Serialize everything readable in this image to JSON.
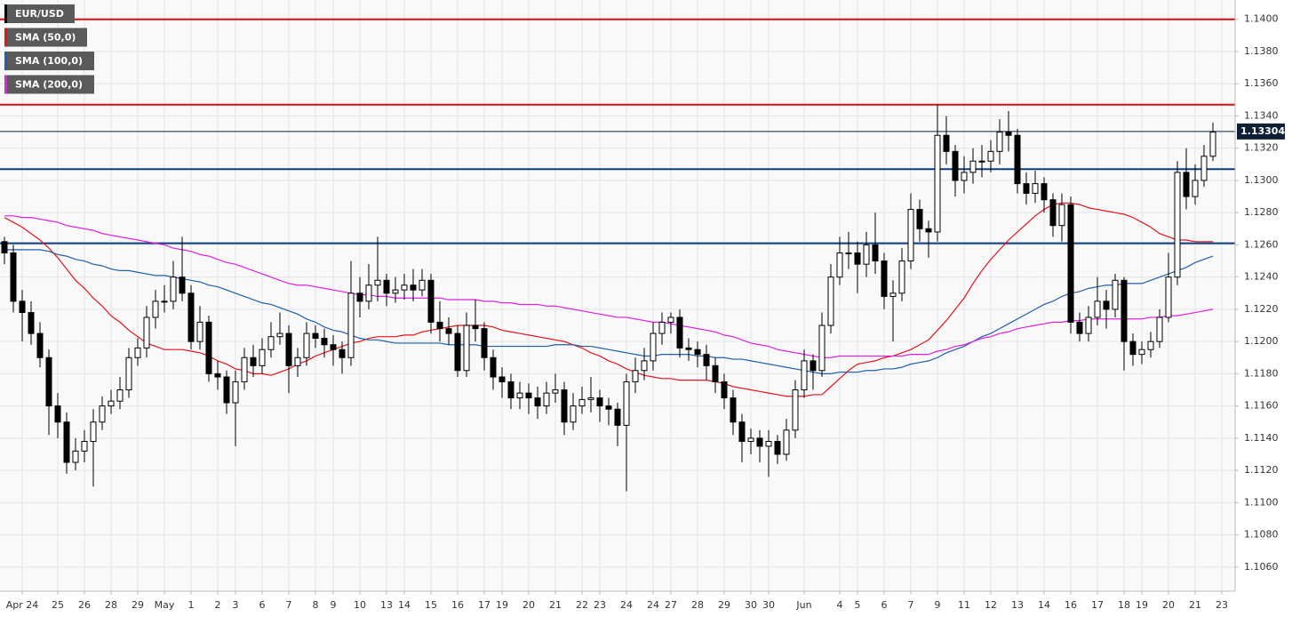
{
  "chart_data": {
    "type": "candlestick",
    "symbol": "EUR/USD",
    "symbol_color": "#000000",
    "up_color": "#ffffff",
    "down_color": "#000000",
    "wick_color": "#000000",
    "grid": true,
    "ylim": [
      1.1045,
      1.1412
    ],
    "yticks": [
      {
        "value": 1.106,
        "label": "1.1060"
      },
      {
        "value": 1.108,
        "label": "1.1080"
      },
      {
        "value": 1.11,
        "label": "1.1100"
      },
      {
        "value": 1.112,
        "label": "1.1120"
      },
      {
        "value": 1.114,
        "label": "1.1140"
      },
      {
        "value": 1.116,
        "label": "1.1160"
      },
      {
        "value": 1.118,
        "label": "1.1180"
      },
      {
        "value": 1.12,
        "label": "1.1200"
      },
      {
        "value": 1.122,
        "label": "1.1220"
      },
      {
        "value": 1.124,
        "label": "1.1240"
      },
      {
        "value": 1.126,
        "label": "1.1260"
      },
      {
        "value": 1.128,
        "label": "1.1280"
      },
      {
        "value": 1.13,
        "label": "1.1300"
      },
      {
        "value": 1.132,
        "label": "1.1320"
      },
      {
        "value": 1.134,
        "label": "1.1340"
      },
      {
        "value": 1.136,
        "label": "1.1360"
      },
      {
        "value": 1.138,
        "label": "1.1380"
      },
      {
        "value": 1.14,
        "label": "1.1400"
      }
    ],
    "last_price": 1.13304,
    "last_price_color": "#0f1f35",
    "hlines": [
      {
        "value": 1.14,
        "color": "#d81010"
      },
      {
        "value": 1.1347,
        "color": "#d81010"
      },
      {
        "value": 1.1307,
        "color": "#0d3c7a"
      },
      {
        "value": 1.1261,
        "color": "#0d3c7a"
      }
    ],
    "categories": [
      null,
      null,
      "Apr 24",
      null,
      null,
      null,
      "25",
      null,
      null,
      "26",
      null,
      null,
      "28",
      null,
      null,
      "29",
      null,
      null,
      "May",
      null,
      null,
      "1",
      null,
      null,
      "2",
      null,
      "3",
      null,
      null,
      "6",
      null,
      null,
      "7",
      null,
      null,
      "8",
      null,
      "9",
      null,
      null,
      "10",
      null,
      null,
      "13",
      null,
      "14",
      null,
      null,
      "15",
      null,
      null,
      "16",
      null,
      null,
      "17",
      null,
      "19",
      null,
      null,
      "20",
      null,
      null,
      "21",
      null,
      null,
      "22",
      null,
      "23",
      null,
      null,
      "24",
      null,
      null,
      "24",
      null,
      "27",
      null,
      null,
      "28",
      null,
      null,
      "29",
      null,
      null,
      "30",
      null,
      "30",
      null,
      null,
      null,
      "Jun",
      null,
      null,
      null,
      "4",
      null,
      "5",
      null,
      null,
      "6",
      null,
      null,
      "7",
      null,
      null,
      "9",
      null,
      null,
      "11",
      null,
      null,
      "12",
      null,
      null,
      "13",
      null,
      null,
      "14",
      null,
      null,
      "16",
      null,
      null,
      "17",
      null,
      null,
      "18",
      null,
      "19",
      null,
      null,
      "20",
      null,
      null,
      "21",
      null,
      null,
      "23"
    ],
    "open": [
      1.1262,
      1.1255,
      1.1225,
      1.1218,
      1.1205,
      1.119,
      1.116,
      1.115,
      1.1125,
      1.1132,
      1.1138,
      1.115,
      1.116,
      1.1163,
      1.117,
      1.119,
      1.1196,
      1.1215,
      1.1225,
      1.1225,
      1.124,
      1.123,
      1.12,
      1.1212,
      1.118,
      1.1178,
      1.1162,
      1.1175,
      1.119,
      1.1185,
      1.1195,
      1.1203,
      1.1205,
      1.1185,
      1.119,
      1.1205,
      1.1202,
      1.1198,
      1.1195,
      1.119,
      1.123,
      1.1225,
      1.1235,
      1.1238,
      1.123,
      1.1232,
      1.1235,
      1.1232,
      1.1238,
      1.1212,
      1.1208,
      1.1205,
      1.1182,
      1.121,
      1.1208,
      1.119,
      1.1178,
      1.1175,
      1.1165,
      1.1168,
      1.1165,
      1.116,
      1.1168,
      1.117,
      1.115,
      1.116,
      1.1164,
      1.1165,
      1.116,
      1.1158,
      1.1148,
      1.1175,
      1.1182,
      1.1188,
      1.1205,
      1.1212,
      1.1215,
      1.1196,
      1.1195,
      1.1192,
      1.1185,
      1.1175,
      1.1165,
      1.115,
      1.1138,
      1.114,
      1.1135,
      1.1138,
      1.113,
      1.1145,
      1.117,
      1.1188,
      1.1182,
      1.121,
      1.124,
      1.1255,
      1.1255,
      1.1248,
      1.126,
      1.125,
      1.1228,
      1.123,
      1.125,
      1.1282,
      1.127,
      1.1268,
      1.1328,
      1.1318,
      1.13,
      1.1305,
      1.1312,
      1.1312,
      1.1318,
      1.133,
      1.1328,
      1.1298,
      1.1292,
      1.1298,
      1.1288,
      1.1272,
      1.1285,
      1.1212,
      1.1205,
      1.1215,
      1.1225,
      1.122,
      1.1238,
      1.12,
      1.1192,
      1.1195,
      1.12,
      1.1215,
      1.124,
      1.1305,
      1.129,
      1.13,
      1.1315,
      null
    ],
    "high": [
      1.1265,
      1.126,
      1.1232,
      1.1225,
      1.1212,
      1.1195,
      1.1168,
      1.1156,
      1.114,
      1.1145,
      1.1158,
      1.1166,
      1.117,
      1.1178,
      1.1196,
      1.1202,
      1.1222,
      1.1232,
      1.1235,
      1.125,
      1.1265,
      1.1235,
      1.1222,
      1.1216,
      1.1188,
      1.1182,
      1.1182,
      1.1196,
      1.1198,
      1.1202,
      1.1212,
      1.1218,
      1.121,
      1.1196,
      1.1212,
      1.121,
      1.1208,
      1.1204,
      1.12,
      1.125,
      1.124,
      1.1248,
      1.1265,
      1.1242,
      1.124,
      1.1242,
      1.1245,
      1.1245,
      1.1242,
      1.1225,
      1.1215,
      1.121,
      1.1218,
      1.1226,
      1.1212,
      1.1195,
      1.1184,
      1.118,
      1.1175,
      1.1174,
      1.1172,
      1.1175,
      1.118,
      1.1175,
      1.1168,
      1.1172,
      1.1178,
      1.117,
      1.1165,
      1.1162,
      1.118,
      1.119,
      1.1196,
      1.1212,
      1.1218,
      1.1218,
      1.122,
      1.1202,
      1.12,
      1.1198,
      1.119,
      1.118,
      1.117,
      1.1155,
      1.1146,
      1.1145,
      1.1145,
      1.1142,
      1.1152,
      1.1176,
      1.1195,
      1.1192,
      1.1218,
      1.1248,
      1.1265,
      1.1268,
      1.1262,
      1.1268,
      1.128,
      1.1255,
      1.1238,
      1.1258,
      1.1292,
      1.1288,
      1.1275,
      1.1347,
      1.134,
      1.1322,
      1.1315,
      1.132,
      1.1322,
      1.1325,
      1.1338,
      1.1343,
      1.1332,
      1.1305,
      1.1306,
      1.1302,
      1.1292,
      1.1292,
      1.129,
      1.1218,
      1.1222,
      1.124,
      1.1232,
      1.1242,
      1.124,
      1.1205,
      1.12,
      1.1206,
      1.122,
      1.1255,
      1.1312,
      1.132,
      1.131,
      1.1322,
      1.1336,
      null
    ],
    "low": [
      1.1248,
      1.1218,
      1.12,
      1.1198,
      1.1184,
      1.1142,
      1.114,
      1.1118,
      1.112,
      1.1125,
      1.111,
      1.1145,
      1.1155,
      1.1158,
      1.1165,
      1.1185,
      1.119,
      1.1208,
      1.1218,
      1.122,
      1.1225,
      1.1195,
      1.1195,
      1.1175,
      1.117,
      1.1155,
      1.1135,
      1.117,
      1.1178,
      1.118,
      1.119,
      1.1198,
      1.1168,
      1.1178,
      1.1185,
      1.1196,
      1.119,
      1.1185,
      1.118,
      1.1185,
      1.1215,
      1.122,
      1.1225,
      1.1222,
      1.1224,
      1.1226,
      1.1225,
      1.1228,
      1.1205,
      1.12,
      1.1198,
      1.1178,
      1.1178,
      1.12,
      1.1182,
      1.117,
      1.1165,
      1.1158,
      1.1158,
      1.1155,
      1.1152,
      1.1155,
      1.1162,
      1.1142,
      1.1145,
      1.1155,
      1.1156,
      1.115,
      1.1148,
      1.1135,
      1.1107,
      1.1168,
      1.1176,
      1.1182,
      1.1198,
      1.1205,
      1.119,
      1.1188,
      1.1184,
      1.1176,
      1.1168,
      1.1158,
      1.1142,
      1.1125,
      1.113,
      1.1125,
      1.1116,
      1.1124,
      1.1126,
      1.114,
      1.1165,
      1.117,
      1.1178,
      1.1205,
      1.1235,
      1.1245,
      1.123,
      1.124,
      1.1242,
      1.122,
      1.12,
      1.1225,
      1.1245,
      1.1262,
      1.1252,
      1.1262,
      1.131,
      1.129,
      1.1292,
      1.1298,
      1.1302,
      1.1305,
      1.131,
      1.1318,
      1.1292,
      1.1285,
      1.1286,
      1.128,
      1.1265,
      1.1262,
      1.1205,
      1.12,
      1.12,
      1.121,
      1.1208,
      1.1215,
      1.1182,
      1.1185,
      1.1186,
      1.119,
      1.1196,
      1.1212,
      1.1235,
      1.1282,
      1.1285,
      1.1296,
      1.1312,
      null
    ],
    "close": [
      1.1255,
      1.1225,
      1.1218,
      1.1205,
      1.119,
      1.116,
      1.115,
      1.1125,
      1.1132,
      1.1138,
      1.115,
      1.116,
      1.1163,
      1.117,
      1.119,
      1.1196,
      1.1215,
      1.1225,
      1.1225,
      1.124,
      1.123,
      1.12,
      1.1212,
      1.118,
      1.1178,
      1.1162,
      1.1175,
      1.119,
      1.1185,
      1.1195,
      1.1203,
      1.1205,
      1.1185,
      1.119,
      1.1205,
      1.1202,
      1.1198,
      1.1195,
      1.119,
      1.123,
      1.1225,
      1.1235,
      1.1238,
      1.123,
      1.1232,
      1.1235,
      1.1232,
      1.1238,
      1.1212,
      1.1208,
      1.1205,
      1.1182,
      1.121,
      1.1208,
      1.119,
      1.1178,
      1.1175,
      1.1165,
      1.1168,
      1.1165,
      1.116,
      1.1168,
      1.117,
      1.115,
      1.116,
      1.1164,
      1.1165,
      1.116,
      1.1158,
      1.1148,
      1.1175,
      1.1182,
      1.1188,
      1.1205,
      1.1212,
      1.1215,
      1.1196,
      1.1195,
      1.1192,
      1.1185,
      1.1175,
      1.1165,
      1.115,
      1.1138,
      1.114,
      1.1135,
      1.1138,
      1.113,
      1.1145,
      1.117,
      1.1188,
      1.1182,
      1.121,
      1.124,
      1.1255,
      1.1255,
      1.1248,
      1.126,
      1.125,
      1.1228,
      1.123,
      1.125,
      1.1282,
      1.127,
      1.1268,
      1.1328,
      1.1318,
      1.13,
      1.1305,
      1.1312,
      1.1312,
      1.1318,
      1.133,
      1.1328,
      1.1298,
      1.1292,
      1.1298,
      1.1288,
      1.1272,
      1.1285,
      1.1212,
      1.1205,
      1.1215,
      1.1225,
      1.122,
      1.1238,
      1.12,
      1.1192,
      1.1195,
      1.12,
      1.1215,
      1.124,
      1.1305,
      1.129,
      1.13,
      1.1315,
      1.133,
      null
    ],
    "series": [
      {
        "name": "SMA (50,0)",
        "color": "#e5141b",
        "values": [
          1.1277,
          1.1274,
          1.1271,
          1.1267,
          1.1263,
          1.1258,
          1.1252,
          1.1245,
          1.1238,
          1.1233,
          1.1227,
          1.1222,
          1.1216,
          1.1212,
          1.1207,
          1.1203,
          1.1199,
          1.1197,
          1.1195,
          1.1195,
          1.1195,
          1.1194,
          1.1193,
          1.1191,
          1.1188,
          1.1186,
          1.1183,
          1.1182,
          1.118,
          1.118,
          1.1179,
          1.1181,
          1.1183,
          1.1186,
          1.1188,
          1.1191,
          1.1193,
          1.1195,
          1.1197,
          1.1199,
          1.12,
          1.1202,
          1.1203,
          1.1203,
          1.1203,
          1.1204,
          1.1204,
          1.1206,
          1.1207,
          1.1208,
          1.1209,
          1.121,
          1.121,
          1.121,
          1.121,
          1.1209,
          1.1207,
          1.1206,
          1.1205,
          1.1204,
          1.1203,
          1.1202,
          1.1201,
          1.12,
          1.1198,
          1.1196,
          1.1193,
          1.1191,
          1.1188,
          1.1186,
          1.1183,
          1.1181,
          1.1179,
          1.1178,
          1.1177,
          1.1177,
          1.1176,
          1.1176,
          1.1176,
          1.1176,
          1.1175,
          1.1174,
          1.1172,
          1.1171,
          1.117,
          1.1169,
          1.1168,
          1.1167,
          1.1166,
          1.1166,
          1.1166,
          1.1167,
          1.1167,
          1.1172,
          1.1177,
          1.1182,
          1.1186,
          1.1187,
          1.1188,
          1.119,
          1.1191,
          1.1193,
          1.1195,
          1.1198,
          1.1201,
          1.1207,
          1.1213,
          1.122,
          1.1227,
          1.1236,
          1.1244,
          1.1251,
          1.1257,
          1.1263,
          1.1268,
          1.1273,
          1.1278,
          1.1282,
          1.1285,
          1.1286,
          1.1286,
          1.1285,
          1.1283,
          1.1282,
          1.1281,
          1.128,
          1.1279,
          1.1277,
          1.1274,
          1.1271,
          1.1267,
          1.1265,
          1.1263,
          1.1263,
          1.1262,
          1.1262,
          1.1262,
          null
        ]
      },
      {
        "name": "SMA (100,0)",
        "color": "#1f5fa8",
        "values": [
          1.1257,
          1.1257,
          1.1257,
          1.1257,
          1.1257,
          1.1256,
          1.1254,
          1.1253,
          1.1251,
          1.125,
          1.1248,
          1.1247,
          1.1245,
          1.1244,
          1.1244,
          1.1243,
          1.1242,
          1.1241,
          1.1241,
          1.124,
          1.1239,
          1.1238,
          1.1237,
          1.1235,
          1.1234,
          1.1232,
          1.123,
          1.1228,
          1.1226,
          1.1224,
          1.1223,
          1.1221,
          1.1219,
          1.1217,
          1.1214,
          1.1212,
          1.1209,
          1.1207,
          1.1206,
          1.1204,
          1.1202,
          1.1201,
          1.1201,
          1.12,
          1.1199,
          1.1199,
          1.1199,
          1.1199,
          1.1199,
          1.1199,
          1.1198,
          1.1198,
          1.1198,
          1.1198,
          1.1197,
          1.1197,
          1.1197,
          1.1197,
          1.1197,
          1.1197,
          1.1197,
          1.1197,
          1.1198,
          1.1198,
          1.1198,
          1.1197,
          1.1197,
          1.1196,
          1.1195,
          1.1194,
          1.1193,
          1.1192,
          1.1191,
          1.1191,
          1.1192,
          1.1192,
          1.1192,
          1.1192,
          1.1191,
          1.1191,
          1.119,
          1.119,
          1.1189,
          1.1189,
          1.1188,
          1.1187,
          1.1186,
          1.1185,
          1.1184,
          1.1183,
          1.1182,
          1.1181,
          1.118,
          1.118,
          1.1181,
          1.1181,
          1.1181,
          1.1182,
          1.1182,
          1.1183,
          1.1183,
          1.1184,
          1.1186,
          1.1187,
          1.1188,
          1.119,
          1.1193,
          1.1195,
          1.1197,
          1.12,
          1.1203,
          1.1205,
          1.1208,
          1.1211,
          1.1214,
          1.1217,
          1.122,
          1.1223,
          1.1225,
          1.1228,
          1.123,
          1.1231,
          1.1233,
          1.1234,
          1.1235,
          1.1235,
          1.1236,
          1.1236,
          1.1236,
          1.1238,
          1.124,
          1.1242,
          1.1244,
          1.1246,
          1.1249,
          1.1251,
          1.1253,
          null
        ]
      },
      {
        "name": "SMA (200,0)",
        "color": "#e020e0",
        "values": [
          1.1278,
          1.1278,
          1.1277,
          1.1277,
          1.1276,
          1.1275,
          1.1274,
          1.1272,
          1.1271,
          1.127,
          1.1269,
          1.1267,
          1.1266,
          1.1265,
          1.1264,
          1.1263,
          1.1262,
          1.1261,
          1.126,
          1.1258,
          1.1257,
          1.1256,
          1.1254,
          1.1253,
          1.1251,
          1.1249,
          1.1248,
          1.1246,
          1.1244,
          1.1242,
          1.124,
          1.1238,
          1.1236,
          1.1235,
          1.1235,
          1.1234,
          1.1233,
          1.1232,
          1.1231,
          1.123,
          1.1229,
          1.1229,
          1.1228,
          1.1228,
          1.1227,
          1.1227,
          1.1227,
          1.1227,
          1.1227,
          1.1227,
          1.1226,
          1.1226,
          1.1226,
          1.1226,
          1.1225,
          1.1225,
          1.1224,
          1.1224,
          1.1223,
          1.1223,
          1.1223,
          1.1222,
          1.1222,
          1.1221,
          1.122,
          1.1219,
          1.1218,
          1.1217,
          1.1216,
          1.1215,
          1.1215,
          1.1214,
          1.1213,
          1.1212,
          1.1212,
          1.1211,
          1.121,
          1.1209,
          1.1208,
          1.1207,
          1.1206,
          1.1204,
          1.1203,
          1.1201,
          1.1199,
          1.1198,
          1.1197,
          1.1195,
          1.1194,
          1.1193,
          1.1192,
          1.1191,
          1.119,
          1.119,
          1.1191,
          1.1191,
          1.1191,
          1.1191,
          1.1191,
          1.1191,
          1.1191,
          1.1191,
          1.1192,
          1.1192,
          1.1192,
          1.1194,
          1.1195,
          1.1197,
          1.1198,
          1.12,
          1.1202,
          1.1203,
          1.1205,
          1.1206,
          1.1208,
          1.1209,
          1.121,
          1.1211,
          1.1212,
          1.1212,
          1.1213,
          1.1213,
          1.1214,
          1.1214,
          1.1214,
          1.1214,
          1.1214,
          1.1214,
          1.1214,
          1.1215,
          1.1215,
          1.1216,
          1.1216,
          1.1217,
          1.1218,
          1.1219,
          1.122,
          null
        ]
      }
    ]
  }
}
